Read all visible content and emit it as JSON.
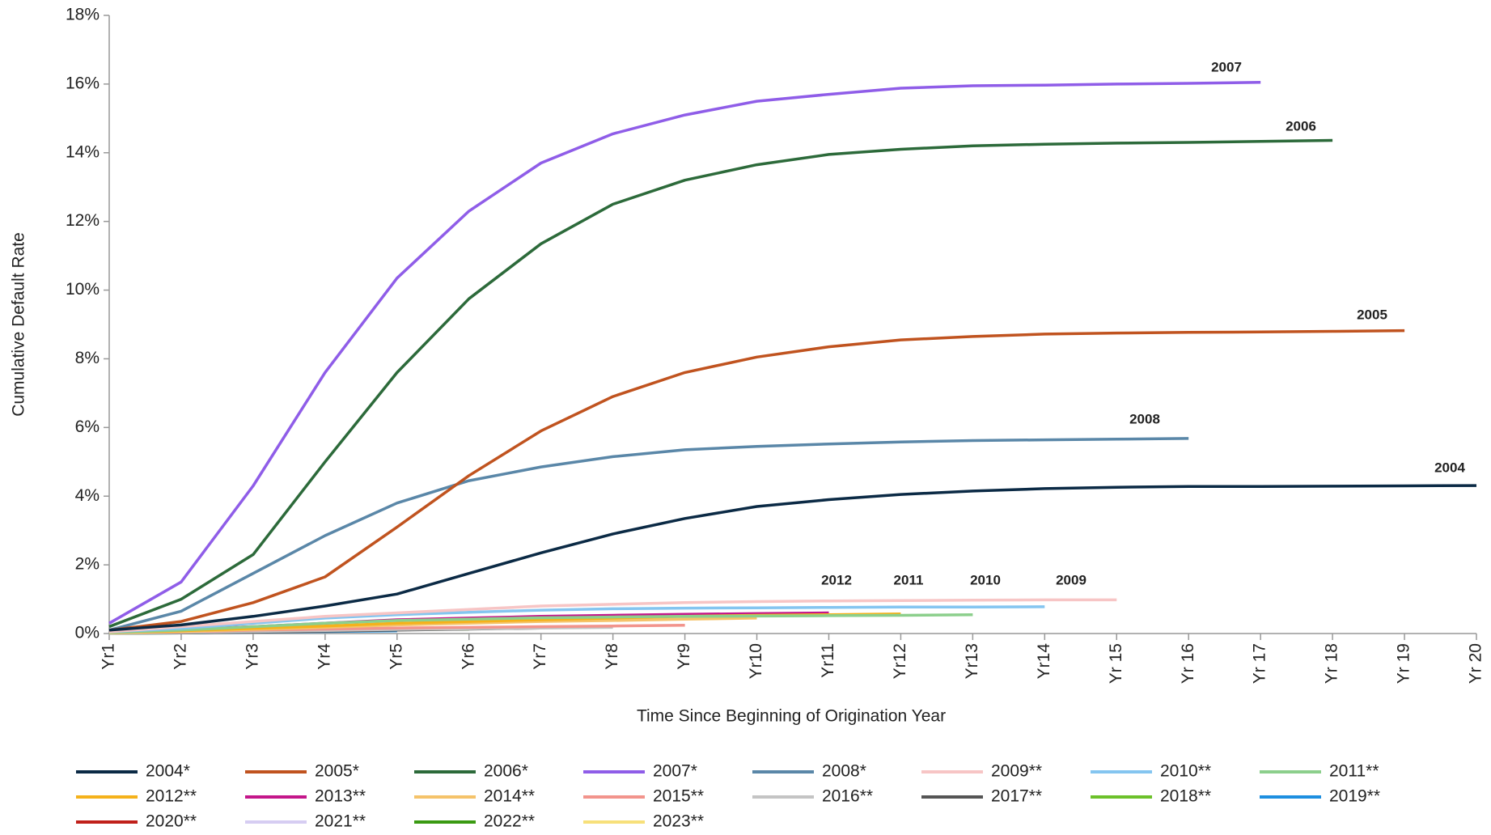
{
  "chart_data": {
    "type": "line",
    "x_label": "Time Since Beginning of Origination Year",
    "y_label": "Cumulative Default Rate",
    "categories": [
      "Yr1",
      "Yr2",
      "Yr3",
      "Yr4",
      "Yr5",
      "Yr6",
      "Yr7",
      "Yr8",
      "Yr9",
      "Yr10",
      "Yr11",
      "Yr12",
      "Yr13",
      "Yr14",
      "Yr 15",
      "Yr 16",
      "Yr 17",
      "Yr 18",
      "Yr 19",
      "Yr 20"
    ],
    "ylim": [
      0,
      18
    ],
    "yticks": [
      {
        "value": 0,
        "label": "0%"
      },
      {
        "value": 2,
        "label": "2%"
      },
      {
        "value": 4,
        "label": "4%"
      },
      {
        "value": 6,
        "label": "6%"
      },
      {
        "value": 8,
        "label": "8%"
      },
      {
        "value": 10,
        "label": "10%"
      },
      {
        "value": 12,
        "label": "12%"
      },
      {
        "value": 14,
        "label": "14%"
      },
      {
        "value": 16,
        "label": "16%"
      },
      {
        "value": 18,
        "label": "18%"
      }
    ],
    "grid": false,
    "annotations": [
      "2007",
      "2006",
      "2005",
      "2008",
      "2004",
      "2012",
      "2011",
      "2010",
      "2009"
    ],
    "series": [
      {
        "name": "2004*",
        "color": "#0b2a45",
        "values": [
          0.1,
          0.25,
          0.5,
          0.8,
          1.15,
          1.75,
          2.35,
          2.9,
          3.35,
          3.7,
          3.9,
          4.05,
          4.15,
          4.22,
          4.26,
          4.28,
          4.28,
          4.29,
          4.3,
          4.31
        ]
      },
      {
        "name": "2005*",
        "color": "#c0531f",
        "values": [
          0.1,
          0.35,
          0.9,
          1.65,
          3.1,
          4.6,
          5.9,
          6.9,
          7.6,
          8.05,
          8.35,
          8.55,
          8.65,
          8.72,
          8.75,
          8.77,
          8.78,
          8.8,
          8.82,
          null
        ]
      },
      {
        "name": "2006*",
        "color": "#2c6a3a",
        "values": [
          0.2,
          1.0,
          2.3,
          5.0,
          7.6,
          9.75,
          11.35,
          12.5,
          13.2,
          13.65,
          13.95,
          14.1,
          14.2,
          14.25,
          14.28,
          14.3,
          14.33,
          14.36,
          null,
          null
        ]
      },
      {
        "name": "2007*",
        "color": "#8f5de8",
        "values": [
          0.3,
          1.5,
          4.3,
          7.6,
          10.35,
          12.3,
          13.7,
          14.55,
          15.1,
          15.5,
          15.7,
          15.88,
          15.95,
          15.97,
          16.0,
          16.02,
          16.05,
          null,
          null,
          null
        ]
      },
      {
        "name": "2008*",
        "color": "#5a87a8",
        "values": [
          0.1,
          0.65,
          1.75,
          2.85,
          3.8,
          4.45,
          4.85,
          5.15,
          5.35,
          5.45,
          5.52,
          5.58,
          5.62,
          5.64,
          5.66,
          5.68,
          null,
          null,
          null,
          null
        ]
      },
      {
        "name": "2009**",
        "color": "#f7c5c5",
        "values": [
          0.05,
          0.2,
          0.35,
          0.5,
          0.6,
          0.7,
          0.8,
          0.85,
          0.9,
          0.93,
          0.95,
          0.96,
          0.97,
          0.98,
          0.98,
          null,
          null,
          null,
          null,
          null
        ]
      },
      {
        "name": "2010**",
        "color": "#84c5f0",
        "values": [
          0.05,
          0.15,
          0.3,
          0.45,
          0.55,
          0.62,
          0.68,
          0.72,
          0.74,
          0.75,
          0.76,
          0.77,
          0.77,
          0.78,
          null,
          null,
          null,
          null,
          null,
          null
        ]
      },
      {
        "name": "2011**",
        "color": "#8ccf8c",
        "values": [
          0.03,
          0.1,
          0.2,
          0.3,
          0.38,
          0.42,
          0.46,
          0.48,
          0.5,
          0.51,
          0.52,
          0.53,
          0.55,
          null,
          null,
          null,
          null,
          null,
          null,
          null
        ]
      },
      {
        "name": "2012**",
        "color": "#f5b21b",
        "values": [
          0.03,
          0.08,
          0.15,
          0.22,
          0.3,
          0.35,
          0.4,
          0.45,
          0.5,
          0.53,
          0.55,
          0.57,
          null,
          null,
          null,
          null,
          null,
          null,
          null,
          null
        ]
      },
      {
        "name": "2013**",
        "color": "#c4168a",
        "values": [
          0.05,
          0.12,
          0.2,
          0.3,
          0.4,
          0.45,
          0.5,
          0.53,
          0.56,
          0.58,
          0.6,
          null,
          null,
          null,
          null,
          null,
          null,
          null,
          null,
          null
        ]
      },
      {
        "name": "2014**",
        "color": "#f5c36a",
        "values": [
          0.02,
          0.06,
          0.12,
          0.18,
          0.25,
          0.3,
          0.35,
          0.38,
          0.42,
          0.45,
          null,
          null,
          null,
          null,
          null,
          null,
          null,
          null,
          null,
          null
        ]
      },
      {
        "name": "2015**",
        "color": "#f2948c",
        "values": [
          0.02,
          0.05,
          0.1,
          0.13,
          0.16,
          0.18,
          0.2,
          0.22,
          0.24,
          null,
          null,
          null,
          null,
          null,
          null,
          null,
          null,
          null,
          null,
          null
        ]
      },
      {
        "name": "2016**",
        "color": "#c4c4c4",
        "values": [
          0.01,
          0.03,
          0.06,
          0.09,
          0.12,
          0.14,
          0.16,
          0.18,
          null,
          null,
          null,
          null,
          null,
          null,
          null,
          null,
          null,
          null,
          null,
          null
        ]
      },
      {
        "name": "2017**",
        "color": "#555555",
        "values": [
          0.01,
          0.02,
          0.04,
          0.07,
          0.1,
          0.13,
          0.16,
          null,
          null,
          null,
          null,
          null,
          null,
          null,
          null,
          null,
          null,
          null,
          null,
          null
        ]
      },
      {
        "name": "2018**",
        "color": "#6cc12a",
        "values": [
          0.01,
          0.02,
          0.05,
          0.08,
          0.11,
          0.13,
          null,
          null,
          null,
          null,
          null,
          null,
          null,
          null,
          null,
          null,
          null,
          null,
          null,
          null
        ]
      },
      {
        "name": "2019**",
        "color": "#1d8fe0",
        "values": [
          0.01,
          0.02,
          0.04,
          0.06,
          0.08,
          null,
          null,
          null,
          null,
          null,
          null,
          null,
          null,
          null,
          null,
          null,
          null,
          null,
          null,
          null
        ]
      },
      {
        "name": "2020**",
        "color": "#c0201a",
        "values": [
          0.02,
          0.05,
          0.08,
          0.1,
          null,
          null,
          null,
          null,
          null,
          null,
          null,
          null,
          null,
          null,
          null,
          null,
          null,
          null,
          null,
          null
        ]
      },
      {
        "name": "2021**",
        "color": "#d6cdf2",
        "values": [
          0.02,
          0.1,
          0.2,
          null,
          null,
          null,
          null,
          null,
          null,
          null,
          null,
          null,
          null,
          null,
          null,
          null,
          null,
          null,
          null,
          null
        ]
      },
      {
        "name": "2022**",
        "color": "#3a9a12",
        "values": [
          0.01,
          0.03,
          null,
          null,
          null,
          null,
          null,
          null,
          null,
          null,
          null,
          null,
          null,
          null,
          null,
          null,
          null,
          null,
          null,
          null
        ]
      },
      {
        "name": "2023**",
        "color": "#f7e07a",
        "values": [
          0.01,
          null,
          null,
          null,
          null,
          null,
          null,
          null,
          null,
          null,
          null,
          null,
          null,
          null,
          null,
          null,
          null,
          null,
          null,
          null
        ]
      }
    ]
  }
}
